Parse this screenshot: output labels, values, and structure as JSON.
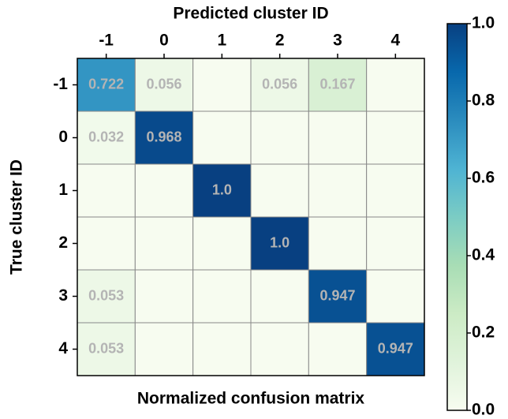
{
  "chart_data": {
    "type": "heatmap",
    "title": "Predicted cluster ID",
    "xlabel": "Normalized confusion matrix",
    "ylabel": "True cluster ID",
    "x_categories": [
      "-1",
      "0",
      "1",
      "2",
      "3",
      "4"
    ],
    "y_categories": [
      "-1",
      "0",
      "1",
      "2",
      "3",
      "4"
    ],
    "values": [
      [
        0.722,
        0.056,
        0,
        0.056,
        0.167,
        0
      ],
      [
        0.032,
        0.968,
        0,
        0,
        0,
        0
      ],
      [
        0,
        0,
        1.0,
        0,
        0,
        0
      ],
      [
        0,
        0,
        0,
        1.0,
        0,
        0
      ],
      [
        0.053,
        0,
        0,
        0,
        0.947,
        0
      ],
      [
        0.053,
        0,
        0,
        0,
        0,
        0.947
      ]
    ],
    "value_labels": [
      [
        "0.722",
        "0.056",
        null,
        "0.056",
        "0.167",
        null
      ],
      [
        "0.032",
        "0.968",
        null,
        null,
        null,
        null
      ],
      [
        null,
        null,
        "1.0",
        null,
        null,
        null
      ],
      [
        null,
        null,
        null,
        "1.0",
        null,
        null
      ],
      [
        "0.053",
        null,
        null,
        null,
        "0.947",
        null
      ],
      [
        "0.053",
        null,
        null,
        null,
        null,
        "0.947"
      ]
    ],
    "colormap": [
      "#f7fcf0",
      "#e0f3db",
      "#ccebc5",
      "#a8ddb5",
      "#7bccc4",
      "#4eb3d3",
      "#2b8cbe",
      "#0868ac",
      "#084081"
    ],
    "clim": [
      0,
      1
    ],
    "cticks": [
      {
        "value": 0,
        "label": "0.0"
      },
      0.2,
      0.4,
      0.6,
      0.8,
      {
        "value": 1,
        "label": "1.0"
      }
    ]
  }
}
